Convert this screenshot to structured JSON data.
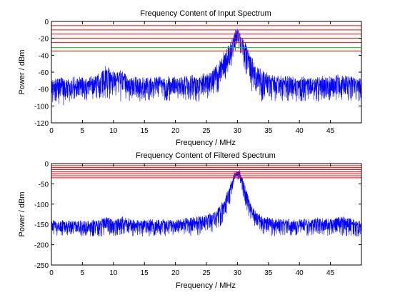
{
  "chart_data": [
    {
      "type": "line",
      "title": "Frequency Content of Input Spectrum",
      "xlabel": "Frequency / MHz",
      "ylabel": "Power / dBm",
      "xlim": [
        0,
        50
      ],
      "ylim": [
        -120,
        0
      ],
      "xticks": [
        0,
        5,
        10,
        15,
        20,
        25,
        30,
        35,
        40,
        45
      ],
      "yticks": [
        0,
        -20,
        -40,
        -60,
        -80,
        -100,
        -120
      ],
      "grid": false,
      "legend": "none",
      "series": [
        {
          "color": "#0000ff",
          "style": "dense noisy spectrum",
          "x": [
            0,
            2,
            4,
            6,
            8,
            8.8,
            9.5,
            10.5,
            11.5,
            12.5,
            15,
            20,
            24,
            26,
            27,
            28,
            29,
            29.5,
            30,
            30.5,
            31,
            32,
            33,
            34,
            36,
            40,
            45,
            47,
            50
          ],
          "y": [
            -68,
            -69,
            -69,
            -68,
            -63,
            -53,
            -60,
            -63,
            -55,
            -68,
            -68,
            -68,
            -66,
            -61,
            -50,
            -36,
            -22,
            -14,
            -12,
            -14,
            -22,
            -40,
            -53,
            -60,
            -66,
            -68,
            -67,
            -63,
            -70
          ],
          "noise_floor_min": [
            -95,
            -100,
            -95,
            -95,
            -95,
            -92,
            -95,
            -95,
            -95,
            -95,
            -95,
            -95,
            -95,
            -90,
            -85,
            -75,
            -55,
            -40,
            -35,
            -40,
            -55,
            -80,
            -90,
            -95,
            -95,
            -95,
            -95,
            -95,
            -95
          ]
        }
      ],
      "threshold_lines": [
        {
          "color": "#ff0000",
          "values": [
            -5,
            -10,
            -15,
            -20,
            -25,
            -35
          ]
        },
        {
          "color": "#00cc00",
          "values": [
            -31
          ]
        }
      ]
    },
    {
      "type": "line",
      "title": "Frequency Content of Filtered Spectrum",
      "xlabel": "Frequency / MHz",
      "ylabel": "Power / dBm",
      "xlim": [
        0,
        50
      ],
      "ylim": [
        -250,
        0
      ],
      "xticks": [
        0,
        5,
        10,
        15,
        20,
        25,
        30,
        35,
        40,
        45
      ],
      "yticks": [
        0,
        -50,
        -100,
        -150,
        -200,
        -250
      ],
      "grid": false,
      "legend": "none",
      "series": [
        {
          "color": "#0000ff",
          "style": "dense noisy spectrum",
          "x": [
            0,
            4,
            8,
            9,
            10,
            11.5,
            13,
            20,
            24,
            26,
            27,
            28,
            29,
            29.5,
            30,
            30.5,
            31,
            32,
            33,
            34,
            36,
            40,
            47,
            50
          ],
          "y": [
            -143,
            -143,
            -140,
            -132,
            -140,
            -133,
            -140,
            -140,
            -132,
            -122,
            -110,
            -85,
            -45,
            -20,
            -15,
            -20,
            -45,
            -95,
            -122,
            -132,
            -138,
            -140,
            -132,
            -145
          ],
          "noise_floor_min": [
            -180,
            -180,
            -180,
            -175,
            -180,
            -175,
            -180,
            -180,
            -178,
            -170,
            -160,
            -140,
            -90,
            -50,
            -40,
            -50,
            -90,
            -140,
            -165,
            -175,
            -180,
            -180,
            -178,
            -182
          ]
        }
      ],
      "threshold_lines": [
        {
          "color": "#ff0000",
          "values": [
            -5,
            -10,
            -15,
            -20,
            -25,
            -30,
            -35
          ]
        }
      ]
    }
  ]
}
